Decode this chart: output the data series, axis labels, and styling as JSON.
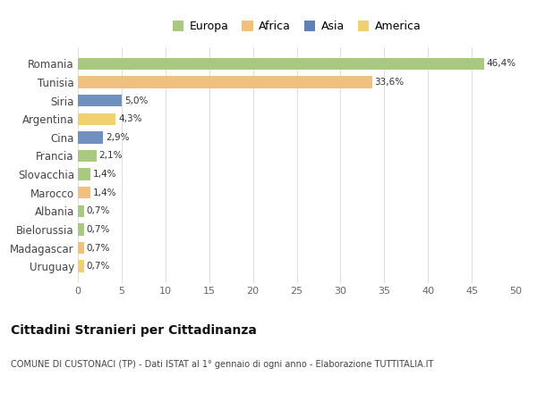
{
  "categories": [
    "Romania",
    "Tunisia",
    "Siria",
    "Argentina",
    "Cina",
    "Francia",
    "Slovacchia",
    "Marocco",
    "Albania",
    "Bielorussia",
    "Madagascar",
    "Uruguay"
  ],
  "values": [
    46.4,
    33.6,
    5.0,
    4.3,
    2.9,
    2.1,
    1.4,
    1.4,
    0.7,
    0.7,
    0.7,
    0.7
  ],
  "labels": [
    "46,4%",
    "33,6%",
    "5,0%",
    "4,3%",
    "2,9%",
    "2,1%",
    "1,4%",
    "1,4%",
    "0,7%",
    "0,7%",
    "0,7%",
    "0,7%"
  ],
  "colors": [
    "#a8c97f",
    "#f0c080",
    "#7090c0",
    "#f0d070",
    "#7090c0",
    "#a8c97f",
    "#a8c97f",
    "#f0c080",
    "#a8c97f",
    "#a8c97f",
    "#f0c080",
    "#f0d070"
  ],
  "continents": [
    "Europa",
    "Africa",
    "Asia",
    "America"
  ],
  "legend_colors": [
    "#a8c97f",
    "#f0c080",
    "#6080b8",
    "#f0d070"
  ],
  "title": "Cittadini Stranieri per Cittadinanza",
  "subtitle": "COMUNE DI CUSTONACI (TP) - Dati ISTAT al 1° gennaio di ogni anno - Elaborazione TUTTITALIA.IT",
  "xlim": [
    0,
    50
  ],
  "xticks": [
    0,
    5,
    10,
    15,
    20,
    25,
    30,
    35,
    40,
    45,
    50
  ],
  "background_color": "#ffffff",
  "grid_color": "#e0e0e0"
}
